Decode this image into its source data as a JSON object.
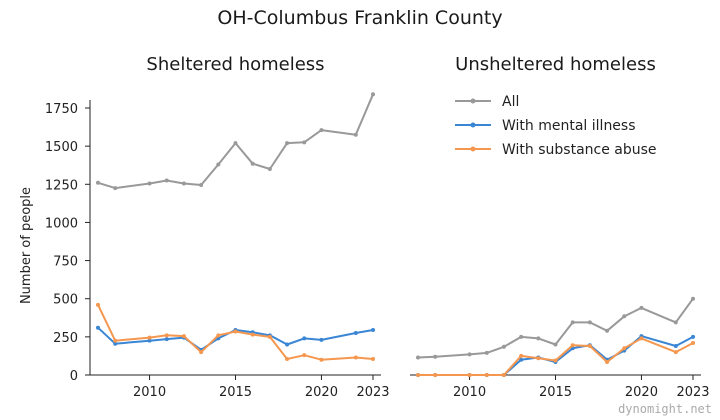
{
  "title": "OH-Columbus Franklin County",
  "watermark": "dynomight.net",
  "colors": {
    "all": "#999999",
    "mental": "#3a86d4",
    "substance": "#f5974f"
  },
  "chart_data": [
    {
      "type": "line",
      "title": "Sheltered homeless",
      "ylabel": "Number of people",
      "xlim": [
        2007,
        2023
      ],
      "ylim": [
        0,
        1850
      ],
      "xticks": [
        2010,
        2015,
        2020,
        2023
      ],
      "yticks": [
        0,
        250,
        500,
        750,
        1000,
        1250,
        1500,
        1750
      ],
      "x": [
        2007,
        2008,
        2010,
        2011,
        2012,
        2013,
        2014,
        2015,
        2016,
        2017,
        2018,
        2019,
        2020,
        2022,
        2023
      ],
      "series": [
        {
          "name": "All",
          "color": "#999999",
          "values": [
            1260,
            1225,
            1255,
            1275,
            1255,
            1245,
            1380,
            1520,
            1385,
            1350,
            1520,
            1525,
            1605,
            1575,
            1840
          ]
        },
        {
          "name": "With mental illness",
          "color": "#3a86d4",
          "values": [
            310,
            205,
            225,
            235,
            245,
            165,
            240,
            295,
            280,
            260,
            200,
            240,
            230,
            275,
            295
          ]
        },
        {
          "name": "With substance abuse",
          "color": "#f5974f",
          "values": [
            460,
            225,
            245,
            260,
            255,
            150,
            260,
            285,
            265,
            250,
            105,
            130,
            100,
            115,
            105
          ]
        }
      ]
    },
    {
      "type": "line",
      "title": "Unsheltered homeless",
      "xlim": [
        2007,
        2023
      ],
      "ylim": [
        0,
        1850
      ],
      "xticks": [
        2010,
        2015,
        2020,
        2023
      ],
      "x": [
        2007,
        2008,
        2010,
        2011,
        2012,
        2013,
        2014,
        2015,
        2016,
        2017,
        2018,
        2019,
        2020,
        2022,
        2023
      ],
      "series": [
        {
          "name": "All",
          "color": "#999999",
          "values": [
            115,
            120,
            135,
            145,
            185,
            250,
            240,
            200,
            345,
            345,
            290,
            385,
            440,
            345,
            500
          ]
        },
        {
          "name": "With mental illness",
          "color": "#3a86d4",
          "values": [
            0,
            0,
            0,
            0,
            0,
            100,
            115,
            85,
            175,
            195,
            100,
            160,
            255,
            190,
            250
          ]
        },
        {
          "name": "With substance abuse",
          "color": "#f5974f",
          "values": [
            0,
            0,
            0,
            0,
            0,
            125,
            110,
            95,
            195,
            190,
            85,
            175,
            240,
            150,
            210
          ]
        }
      ],
      "legend": {
        "position": "top",
        "entries": [
          "All",
          "With mental illness",
          "With substance abuse"
        ]
      }
    }
  ]
}
